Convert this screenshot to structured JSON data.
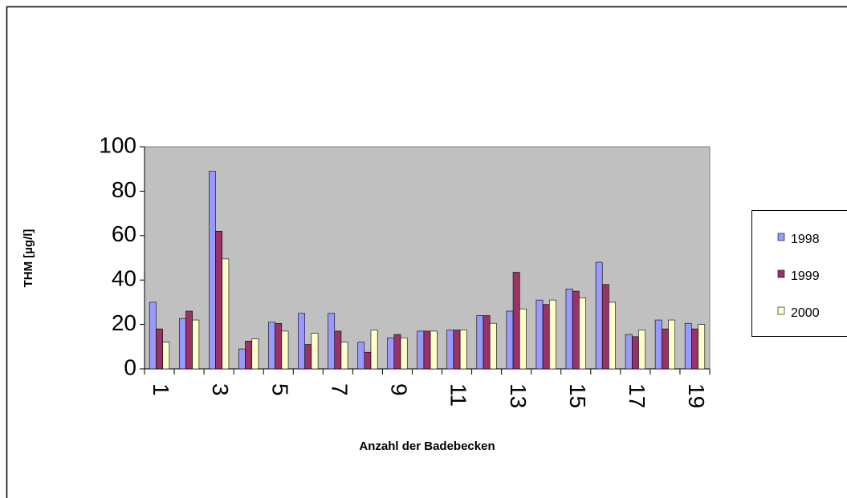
{
  "chart_data": {
    "type": "bar",
    "x_label": "Anzahl der Badebecken",
    "y_label": "THM [µg/l]",
    "categories": [
      "1",
      null,
      "3",
      null,
      "5",
      null,
      "7",
      null,
      "9",
      null,
      "11",
      null,
      "13",
      null,
      "15",
      null,
      "17",
      null,
      "19"
    ],
    "series": [
      {
        "name": "1998",
        "color": "#9999ff",
        "values": [
          30,
          22.7,
          89,
          9,
          21,
          25,
          25,
          12,
          14,
          17,
          17.5,
          24,
          26,
          31,
          36,
          48,
          15.5,
          22,
          20.5
        ]
      },
      {
        "name": "1999",
        "color": "#993366",
        "values": [
          18,
          26,
          62,
          12.5,
          20.5,
          11,
          17,
          7.5,
          15.5,
          17,
          17.5,
          24,
          43.5,
          29,
          35,
          38,
          14.5,
          18,
          18
        ]
      },
      {
        "name": "2000",
        "color": "#ffffcc",
        "values": [
          12,
          22,
          49.5,
          13.5,
          17,
          16,
          12,
          17.5,
          14,
          17,
          17.5,
          20.5,
          27,
          31,
          32,
          30,
          17.5,
          22,
          20
        ]
      }
    ],
    "ylim": [
      0,
      100
    ],
    "yticks": [
      0,
      20,
      40,
      60,
      80,
      100
    ],
    "grid": false,
    "legend": "right",
    "plot_background": "#c0c0c0"
  }
}
